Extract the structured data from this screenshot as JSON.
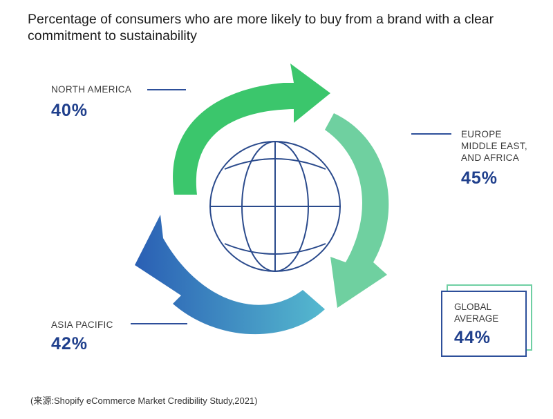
{
  "chart_data": {
    "type": "infographic",
    "title": "Percentage of consumers who are more likely to buy from a brand with a clear commitment to sustainability",
    "regions": [
      {
        "name": "NORTH AMERICA",
        "value": 40,
        "display": "40%"
      },
      {
        "name": "EUROPE\nMIDDLE EAST,\nAND AFRICA",
        "value": 45,
        "display": "45%"
      },
      {
        "name": "ASIA PACIFIC",
        "value": 42,
        "display": "42%"
      }
    ],
    "global": {
      "name": "GLOBAL\nAVERAGE",
      "value": 44,
      "display": "44%"
    },
    "source": "(来源:Shopify eCommerce Market Credibility Study,2021)"
  },
  "colors": {
    "title_text": "#1d1d1d",
    "value_text": "#1f3f8c",
    "arrow_green": "#39c46c",
    "arrow_teal": "#6fcfa3",
    "arrow_blue": "#2957a8",
    "globe_stroke": "#2a4a8c"
  }
}
